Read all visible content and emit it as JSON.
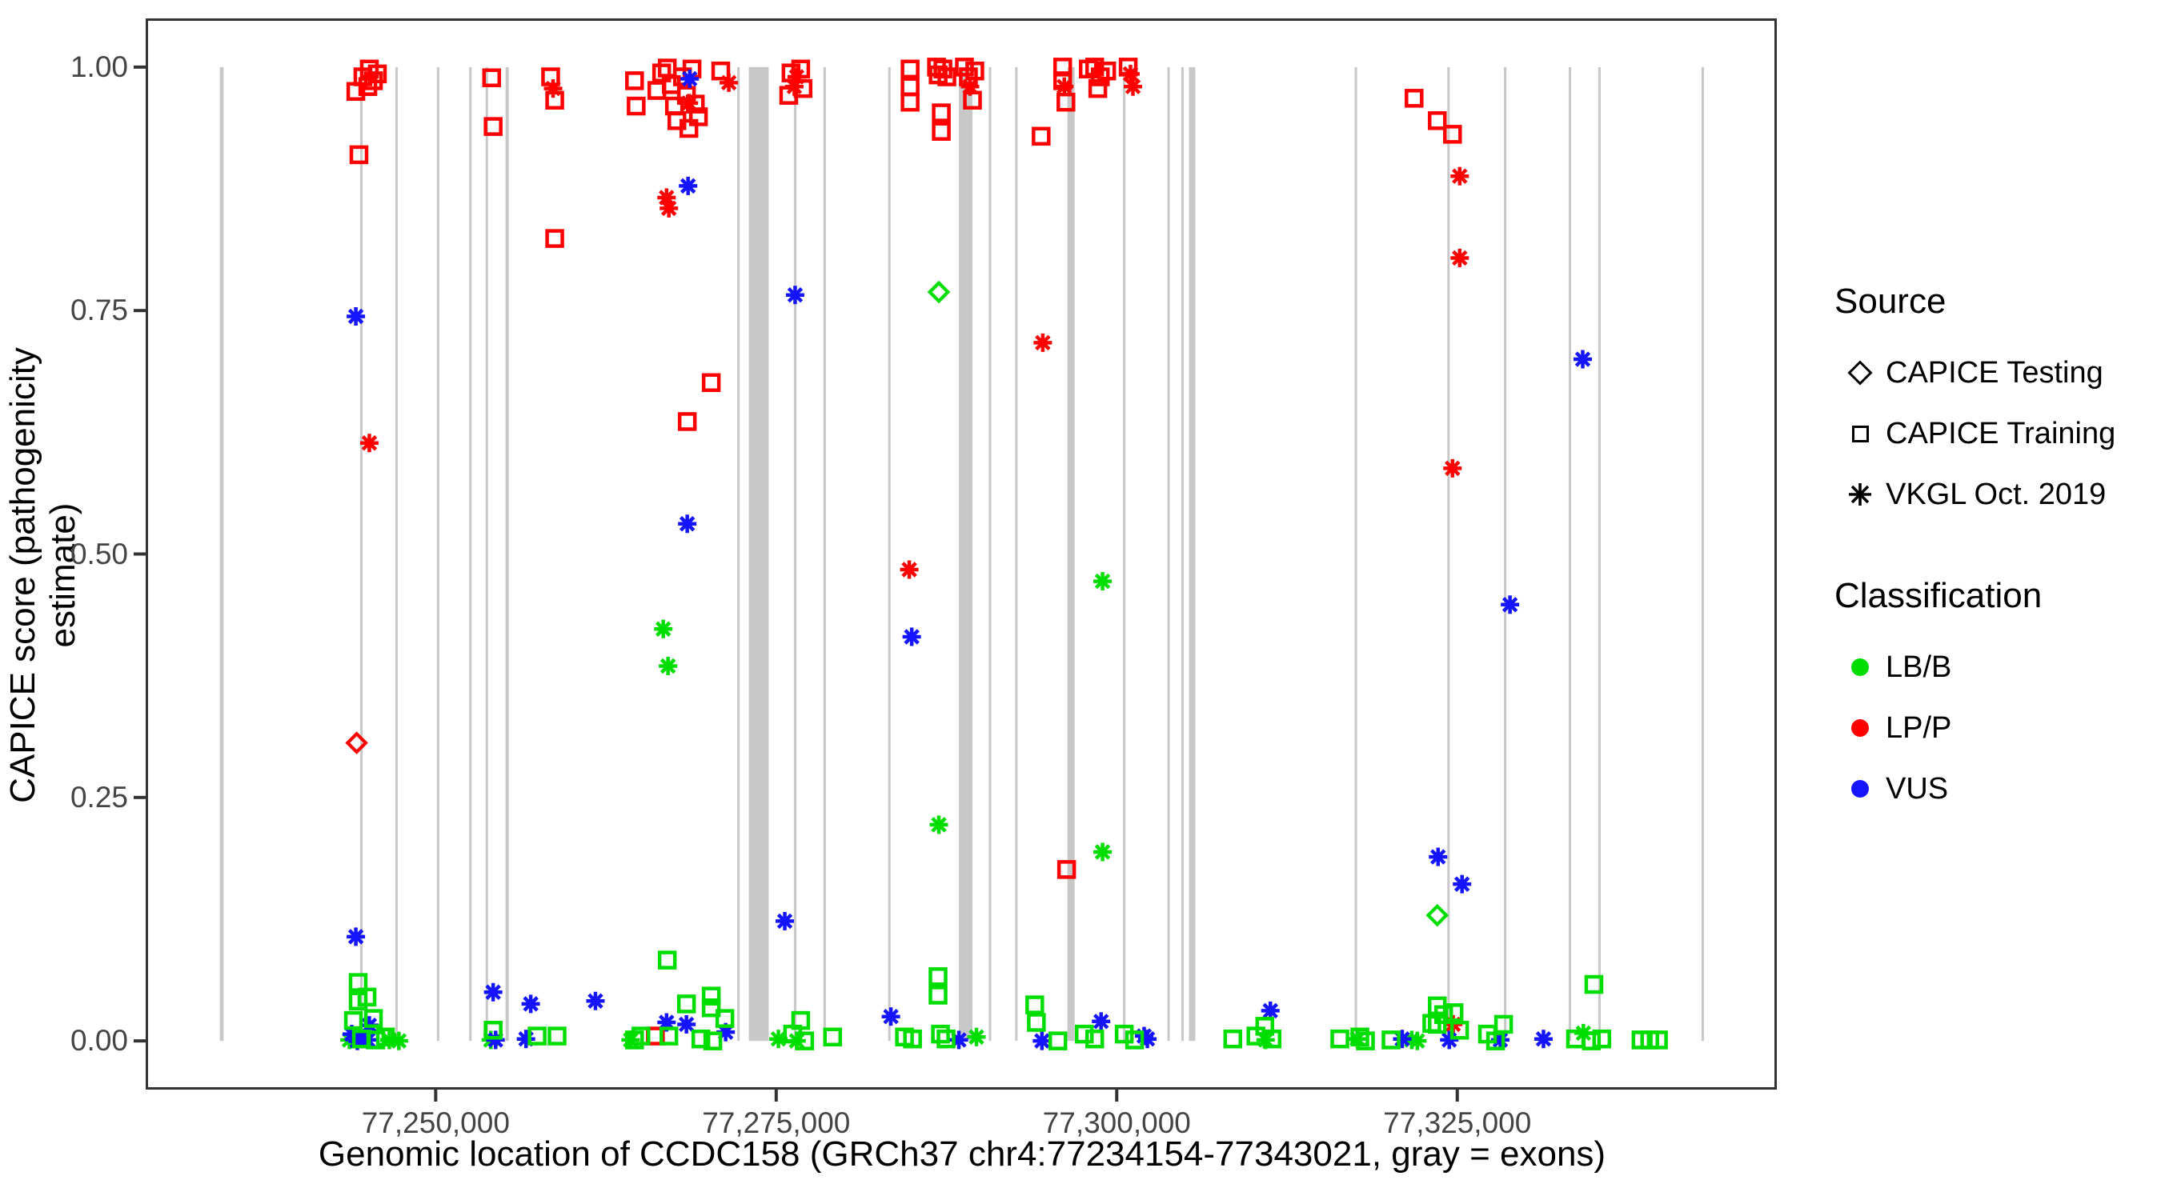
{
  "chart_data": {
    "type": "scatter",
    "title": "",
    "xlabel": "Genomic location of CCDC158 (GRCh37 chr4:77234154-77343021, gray = exons)",
    "ylabel": "CAPICE score (pathogenicity estimate)",
    "xlim": [
      77228710,
      77348460
    ],
    "ylim": [
      -0.05,
      1.05
    ],
    "x_ticks": [
      77250000,
      77275000,
      77300000,
      77325000
    ],
    "x_tick_labels": [
      "77,250,000",
      "77,275,000",
      "77,300,000",
      "77,325,000"
    ],
    "y_ticks": [
      0,
      0.25,
      0.5,
      0.75,
      1
    ],
    "y_tick_labels": [
      "0.00",
      "0.25",
      "0.50",
      "0.75",
      "1.00"
    ],
    "grid": false,
    "legend_position": "right",
    "gene": {
      "name": "CCDC158",
      "assembly": "GRCh37",
      "region": "chr4:77234154-77343021"
    },
    "exon_color_note": "gray = exons",
    "exons_bp": [
      [
        77234154,
        77234430
      ],
      [
        77244460,
        77244640
      ],
      [
        77247040,
        77247210
      ],
      [
        77250090,
        77250260
      ],
      [
        77252460,
        77252640
      ],
      [
        77253670,
        77253840
      ],
      [
        77255130,
        77255370
      ],
      [
        77272140,
        77272320
      ],
      [
        77272990,
        77274450
      ],
      [
        77276300,
        77276480
      ],
      [
        77278470,
        77278640
      ],
      [
        77283220,
        77283390
      ],
      [
        77288410,
        77289410
      ],
      [
        77290610,
        77290790
      ],
      [
        77292540,
        77292720
      ],
      [
        77296380,
        77296910
      ],
      [
        77300460,
        77300640
      ],
      [
        77303720,
        77303890
      ],
      [
        77304740,
        77304920
      ],
      [
        77305300,
        77305770
      ],
      [
        77317470,
        77317640
      ],
      [
        77324270,
        77324440
      ],
      [
        77328430,
        77328610
      ],
      [
        77333180,
        77333360
      ],
      [
        77335350,
        77335530
      ],
      [
        77342930,
        77343021
      ]
    ],
    "points_format": [
      "genomic_position",
      "capice_score",
      "marker: s=square(CAPICE Training), d=diamond(CAPICE Testing), a=asterisk(VKGL Oct. 2019)",
      "class: g=LB/B, r=LP/P, b=VUS"
    ],
    "points": [
      [
        77244140,
        0.975,
        "s",
        "r"
      ],
      [
        77244660,
        0.99,
        "s",
        "r"
      ],
      [
        77245130,
        0.998,
        "s",
        "r"
      ],
      [
        77245430,
        0.986,
        "s",
        "r"
      ],
      [
        77245720,
        0.993,
        "s",
        "r"
      ],
      [
        77245020,
        0.98,
        "s",
        "r"
      ],
      [
        77244370,
        0.91,
        "s",
        "r"
      ],
      [
        77254110,
        0.989,
        "s",
        "r"
      ],
      [
        77254220,
        0.939,
        "s",
        "r"
      ],
      [
        77258440,
        0.99,
        "s",
        "r"
      ],
      [
        77258740,
        0.966,
        "s",
        "r"
      ],
      [
        77258740,
        0.824,
        "s",
        "r"
      ],
      [
        77264600,
        0.986,
        "s",
        "r"
      ],
      [
        77264720,
        0.96,
        "s",
        "r"
      ],
      [
        77266240,
        0.976,
        "s",
        "r"
      ],
      [
        77266590,
        0.994,
        "s",
        "r"
      ],
      [
        77267000,
        0.999,
        "s",
        "r"
      ],
      [
        77267300,
        0.982,
        "s",
        "r"
      ],
      [
        77267530,
        0.96,
        "s",
        "r"
      ],
      [
        77267710,
        0.945,
        "s",
        "r"
      ],
      [
        77268120,
        0.99,
        "s",
        "r"
      ],
      [
        77268410,
        0.971,
        "s",
        "r"
      ],
      [
        77268820,
        0.998,
        "s",
        "r"
      ],
      [
        77269060,
        0.962,
        "s",
        "r"
      ],
      [
        77269290,
        0.949,
        "s",
        "r"
      ],
      [
        77268590,
        0.937,
        "s",
        "r"
      ],
      [
        77270930,
        0.996,
        "s",
        "r"
      ],
      [
        77270230,
        0.676,
        "s",
        "r"
      ],
      [
        77268470,
        0.636,
        "s",
        "r"
      ],
      [
        77276090,
        0.994,
        "s",
        "r"
      ],
      [
        77275920,
        0.971,
        "s",
        "r"
      ],
      [
        77276800,
        0.998,
        "s",
        "r"
      ],
      [
        77276970,
        0.978,
        "s",
        "r"
      ],
      [
        77284830,
        0.998,
        "s",
        "r"
      ],
      [
        77284830,
        0.98,
        "s",
        "r"
      ],
      [
        77284830,
        0.964,
        "s",
        "r"
      ],
      [
        77286770,
        1.0,
        "s",
        "r"
      ],
      [
        77287240,
        0.998,
        "s",
        "r"
      ],
      [
        77287530,
        0.99,
        "s",
        "r"
      ],
      [
        77286890,
        0.992,
        "s",
        "r"
      ],
      [
        77287120,
        0.953,
        "s",
        "r"
      ],
      [
        77287120,
        0.934,
        "s",
        "r"
      ],
      [
        77288820,
        1.0,
        "s",
        "r"
      ],
      [
        77289110,
        0.99,
        "s",
        "r"
      ],
      [
        77289580,
        0.996,
        "s",
        "r"
      ],
      [
        77289410,
        0.966,
        "s",
        "r"
      ],
      [
        77296030,
        1.0,
        "s",
        "r"
      ],
      [
        77296030,
        0.986,
        "s",
        "r"
      ],
      [
        77296270,
        0.964,
        "s",
        "r"
      ],
      [
        77294450,
        0.929,
        "s",
        "r"
      ],
      [
        77297910,
        0.998,
        "s",
        "r"
      ],
      [
        77298380,
        1.0,
        "s",
        "r"
      ],
      [
        77298790,
        0.99,
        "s",
        "r"
      ],
      [
        77299260,
        0.996,
        "s",
        "r"
      ],
      [
        77298610,
        0.978,
        "s",
        "r"
      ],
      [
        77300840,
        1.0,
        "s",
        "r"
      ],
      [
        77321830,
        0.968,
        "s",
        "r"
      ],
      [
        77323530,
        0.945,
        "s",
        "r"
      ],
      [
        77324650,
        0.931,
        "s",
        "r"
      ],
      [
        77266130,
        0.005,
        "s",
        "r"
      ],
      [
        77296320,
        0.176,
        "s",
        "r"
      ],
      [
        77245130,
        0.614,
        "a",
        "r"
      ],
      [
        77258620,
        0.978,
        "a",
        "r"
      ],
      [
        77268590,
        0.963,
        "a",
        "r"
      ],
      [
        77266950,
        0.866,
        "a",
        "r"
      ],
      [
        77267120,
        0.855,
        "a",
        "r"
      ],
      [
        77271520,
        0.984,
        "a",
        "r"
      ],
      [
        77276500,
        0.99,
        "a",
        "r"
      ],
      [
        77276330,
        0.98,
        "a",
        "r"
      ],
      [
        77289230,
        0.98,
        "a",
        "r"
      ],
      [
        77296150,
        0.98,
        "a",
        "r"
      ],
      [
        77301010,
        0.993,
        "a",
        "r"
      ],
      [
        77301190,
        0.98,
        "a",
        "r"
      ],
      [
        77294570,
        0.717,
        "a",
        "r"
      ],
      [
        77284770,
        0.484,
        "a",
        "r"
      ],
      [
        77325180,
        0.888,
        "a",
        "r"
      ],
      [
        77325180,
        0.804,
        "a",
        "r"
      ],
      [
        77324650,
        0.588,
        "a",
        "r"
      ],
      [
        77324700,
        0.017,
        "a",
        "r"
      ],
      [
        77244200,
        0.306,
        "d",
        "r"
      ],
      [
        77286940,
        0.769,
        "d",
        "g"
      ],
      [
        77323530,
        0.129,
        "d",
        "g"
      ],
      [
        77266710,
        0.423,
        "a",
        "g"
      ],
      [
        77267060,
        0.385,
        "a",
        "g"
      ],
      [
        77286940,
        0.222,
        "a",
        "g"
      ],
      [
        77298960,
        0.472,
        "a",
        "g"
      ],
      [
        77298960,
        0.194,
        "a",
        "g"
      ],
      [
        77243670,
        0.001,
        "a",
        "g"
      ],
      [
        77246600,
        0.001,
        "a",
        "g"
      ],
      [
        77247300,
        0.0,
        "a",
        "g"
      ],
      [
        77254050,
        0.001,
        "a",
        "g"
      ],
      [
        77264310,
        0.001,
        "a",
        "g"
      ],
      [
        77275160,
        0.002,
        "a",
        "g"
      ],
      [
        77276500,
        0.0,
        "a",
        "g"
      ],
      [
        77289700,
        0.004,
        "a",
        "g"
      ],
      [
        77310930,
        0.001,
        "a",
        "g"
      ],
      [
        77317670,
        0.002,
        "a",
        "g"
      ],
      [
        77321660,
        0.001,
        "a",
        "g"
      ],
      [
        77322070,
        0.0,
        "a",
        "g"
      ],
      [
        77334260,
        0.008,
        "a",
        "g"
      ],
      [
        77244140,
        0.744,
        "a",
        "b"
      ],
      [
        77268650,
        0.988,
        "a",
        "b"
      ],
      [
        77268530,
        0.878,
        "a",
        "b"
      ],
      [
        77268470,
        0.531,
        "a",
        "b"
      ],
      [
        77276390,
        0.766,
        "a",
        "b"
      ],
      [
        77275630,
        0.123,
        "a",
        "b"
      ],
      [
        77284950,
        0.415,
        "a",
        "b"
      ],
      [
        77334210,
        0.7,
        "a",
        "b"
      ],
      [
        77328870,
        0.448,
        "a",
        "b"
      ],
      [
        77323590,
        0.189,
        "a",
        "b"
      ],
      [
        77325350,
        0.161,
        "a",
        "b"
      ],
      [
        77244140,
        0.107,
        "a",
        "b"
      ],
      [
        77245130,
        0.016,
        "a",
        "b"
      ],
      [
        77243840,
        0.007,
        "a",
        "b"
      ],
      [
        77244430,
        0.002,
        "a",
        "b"
      ],
      [
        77244250,
        0.0,
        "a",
        "b"
      ],
      [
        77245020,
        0.001,
        "a",
        "b"
      ],
      [
        77254220,
        0.05,
        "a",
        "b"
      ],
      [
        77254400,
        0.001,
        "a",
        "b"
      ],
      [
        77256980,
        0.038,
        "a",
        "b"
      ],
      [
        77256630,
        0.002,
        "a",
        "b"
      ],
      [
        77261730,
        0.041,
        "a",
        "b"
      ],
      [
        77266950,
        0.019,
        "a",
        "b"
      ],
      [
        77268410,
        0.017,
        "a",
        "b"
      ],
      [
        77271290,
        0.009,
        "a",
        "b"
      ],
      [
        77283420,
        0.025,
        "a",
        "b"
      ],
      [
        77288410,
        0.001,
        "a",
        "b"
      ],
      [
        77294510,
        0.0,
        "a",
        "b"
      ],
      [
        77298850,
        0.02,
        "a",
        "b"
      ],
      [
        77302010,
        0.005,
        "a",
        "b"
      ],
      [
        77302250,
        0.002,
        "a",
        "b"
      ],
      [
        77311280,
        0.031,
        "a",
        "b"
      ],
      [
        77320960,
        0.002,
        "a",
        "b"
      ],
      [
        77324410,
        0.001,
        "a",
        "b"
      ],
      [
        77328160,
        0.001,
        "a",
        "b"
      ],
      [
        77331330,
        0.002,
        "a",
        "b"
      ],
      [
        77244310,
        0.06,
        "s",
        "g"
      ],
      [
        77244960,
        0.045,
        "s",
        "g"
      ],
      [
        77244310,
        0.041,
        "s",
        "g"
      ],
      [
        77243960,
        0.021,
        "s",
        "g"
      ],
      [
        77245430,
        0.023,
        "s",
        "g"
      ],
      [
        77244550,
        0.002,
        "s",
        "g"
      ],
      [
        77245600,
        0.001,
        "s",
        "g"
      ],
      [
        77246310,
        0.004,
        "s",
        "g"
      ],
      [
        77254220,
        0.011,
        "s",
        "g"
      ],
      [
        77257450,
        0.005,
        "s",
        "g"
      ],
      [
        77258910,
        0.005,
        "s",
        "g"
      ],
      [
        77264600,
        0.001,
        "s",
        "g"
      ],
      [
        77265070,
        0.005,
        "s",
        "g"
      ],
      [
        77267000,
        0.083,
        "s",
        "g"
      ],
      [
        77268410,
        0.038,
        "s",
        "g"
      ],
      [
        77267120,
        0.005,
        "s",
        "g"
      ],
      [
        77269470,
        0.002,
        "s",
        "g"
      ],
      [
        77270230,
        0.046,
        "s",
        "g"
      ],
      [
        77270230,
        0.034,
        "s",
        "g"
      ],
      [
        77271230,
        0.023,
        "s",
        "g"
      ],
      [
        77270350,
        0.0,
        "s",
        "g"
      ],
      [
        77276210,
        0.007,
        "s",
        "g"
      ],
      [
        77276800,
        0.021,
        "s",
        "g"
      ],
      [
        77277090,
        0.0,
        "s",
        "g"
      ],
      [
        77279140,
        0.004,
        "s",
        "g"
      ],
      [
        77284420,
        0.004,
        "s",
        "g"
      ],
      [
        77285010,
        0.002,
        "s",
        "g"
      ],
      [
        77286880,
        0.066,
        "s",
        "g"
      ],
      [
        77286880,
        0.047,
        "s",
        "g"
      ],
      [
        77287060,
        0.007,
        "s",
        "g"
      ],
      [
        77287470,
        0.002,
        "s",
        "g"
      ],
      [
        77293980,
        0.037,
        "s",
        "g"
      ],
      [
        77294100,
        0.019,
        "s",
        "g"
      ],
      [
        77295680,
        0.0,
        "s",
        "g"
      ],
      [
        77297620,
        0.007,
        "s",
        "g"
      ],
      [
        77298380,
        0.002,
        "s",
        "g"
      ],
      [
        77300550,
        0.007,
        "s",
        "g"
      ],
      [
        77301310,
        0.001,
        "s",
        "g"
      ],
      [
        77308520,
        0.002,
        "s",
        "g"
      ],
      [
        77310220,
        0.005,
        "s",
        "g"
      ],
      [
        77310870,
        0.015,
        "s",
        "g"
      ],
      [
        77311400,
        0.002,
        "s",
        "g"
      ],
      [
        77316380,
        0.002,
        "s",
        "g"
      ],
      [
        77317850,
        0.004,
        "s",
        "g"
      ],
      [
        77318260,
        0.0,
        "s",
        "g"
      ],
      [
        77320140,
        0.001,
        "s",
        "g"
      ],
      [
        77323130,
        0.018,
        "s",
        "g"
      ],
      [
        77323530,
        0.036,
        "s",
        "g"
      ],
      [
        77323530,
        0.017,
        "s",
        "g"
      ],
      [
        77324000,
        0.027,
        "s",
        "g"
      ],
      [
        77324760,
        0.029,
        "s",
        "g"
      ],
      [
        77325170,
        0.011,
        "s",
        "g"
      ],
      [
        77327220,
        0.007,
        "s",
        "g"
      ],
      [
        77327810,
        0.0,
        "s",
        "g"
      ],
      [
        77328400,
        0.017,
        "s",
        "g"
      ],
      [
        77333680,
        0.002,
        "s",
        "g"
      ],
      [
        77334850,
        0.0,
        "s",
        "g"
      ],
      [
        77335610,
        0.002,
        "s",
        "g"
      ],
      [
        77335030,
        0.058,
        "s",
        "g"
      ],
      [
        77338490,
        0.001,
        "s",
        "g"
      ],
      [
        77339130,
        0.001,
        "s",
        "g"
      ],
      [
        77339770,
        0.001,
        "s",
        "g"
      ]
    ]
  },
  "colors": {
    "LB_B": "#00DD00",
    "LP_P": "#FF0000",
    "VUS": "#1414FF",
    "exon": "#C8C8C8",
    "axis": "#333333",
    "tick_text": "#444444"
  },
  "legend": {
    "source": {
      "title": "Source",
      "items": [
        {
          "label": "CAPICE Testing",
          "marker": "diamond"
        },
        {
          "label": "CAPICE Training",
          "marker": "square"
        },
        {
          "label": "VKGL Oct. 2019",
          "marker": "asterisk"
        }
      ]
    },
    "classification": {
      "title": "Classification",
      "items": [
        {
          "label": "LB/B",
          "color": "#00DD00"
        },
        {
          "label": "LP/P",
          "color": "#FF0000"
        },
        {
          "label": "VUS",
          "color": "#1414FF"
        }
      ]
    }
  }
}
